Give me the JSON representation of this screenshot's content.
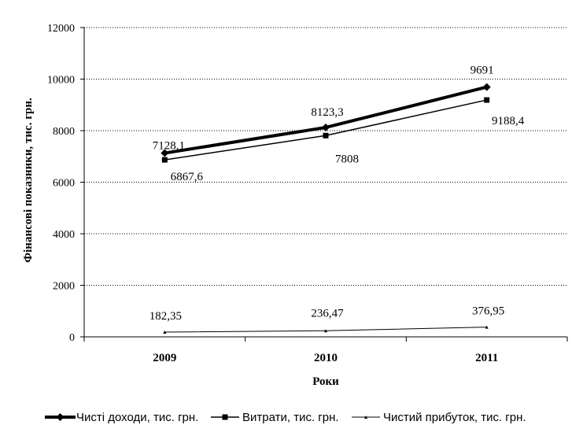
{
  "chart_data": {
    "type": "line",
    "categories": [
      "2009",
      "2010",
      "2011"
    ],
    "xlabel": "Роки",
    "ylabel": "Фінансові показники, тис. грн.",
    "ylim": [
      0,
      12000
    ],
    "yticks": [
      "0",
      "2000",
      "4000",
      "6000",
      "8000",
      "10000",
      "12000"
    ],
    "grid": "horizontal dotted",
    "legend_position": "bottom",
    "series": [
      {
        "name": "Чисті доходи, тис. грн.",
        "values": [
          7128.1,
          8123.3,
          9691
        ],
        "labels": [
          "7128,1",
          "8123,3",
          "9691"
        ],
        "marker": "diamond",
        "color": "#000000"
      },
      {
        "name": "Витрати, тис. грн.",
        "values": [
          6867.6,
          7808,
          9188.4
        ],
        "labels": [
          "6867,6",
          "7808",
          "9188,4"
        ],
        "marker": "square",
        "color": "#000000"
      },
      {
        "name": "Чистий прибуток, тис. грн.",
        "values": [
          182.35,
          236.47,
          376.95
        ],
        "labels": [
          "182,35",
          "236,47",
          "376,95"
        ],
        "marker": "triangle",
        "color": "#000000"
      }
    ]
  }
}
